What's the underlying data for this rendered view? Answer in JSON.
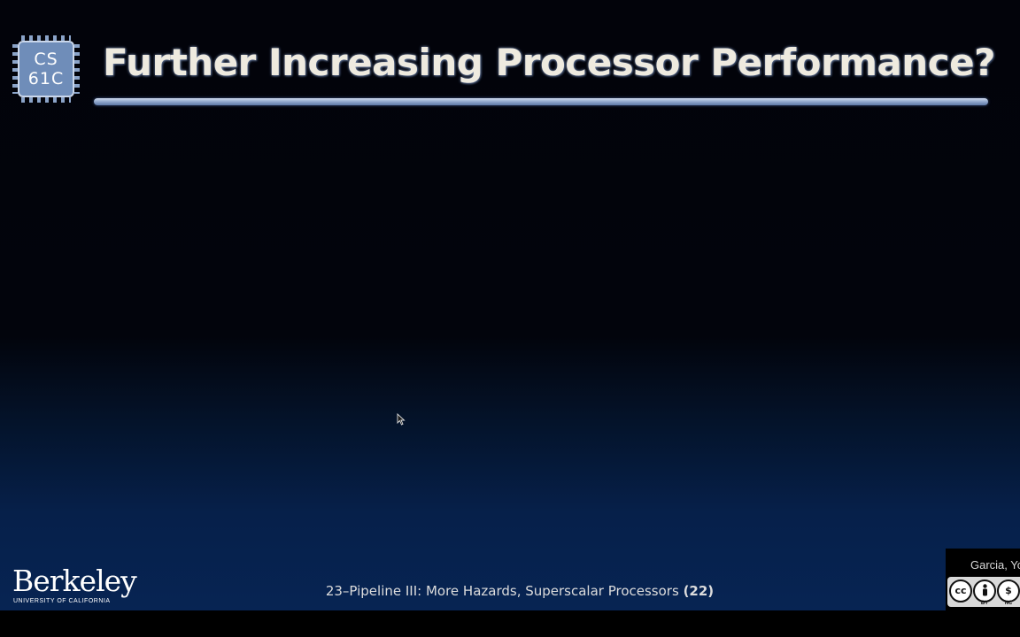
{
  "slide": {
    "logo_text": "CS\n61C",
    "title": "Further Increasing Processor Performance?",
    "footer_text": "23–Pipeline III: More Hazards, Superscalar Processors",
    "page_number": "(22)",
    "author": "Garcia, Yo",
    "institution": {
      "name": "Berkeley",
      "subtitle": "UNIVERSITY OF CALIFORNIA"
    },
    "license": {
      "icons": [
        "cc-icon",
        "by-icon",
        "nc-icon",
        "sa-icon"
      ],
      "labels": [
        "BY",
        "NC"
      ]
    }
  },
  "colors": {
    "title": "#eeeadf",
    "rule": "#8fa6cc",
    "background_bottom": "#072453"
  }
}
